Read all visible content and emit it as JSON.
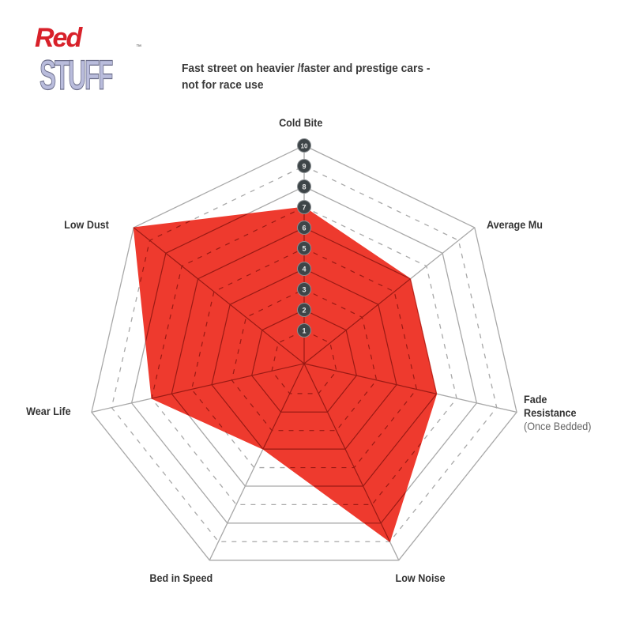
{
  "logo": {
    "line1": "Red",
    "line2": "STUFF",
    "tm": "™"
  },
  "description": {
    "line1": "Fast street on heavier /faster and prestige cars -",
    "line2": "not for race use"
  },
  "chart_data": {
    "type": "radar",
    "title": "",
    "scale": {
      "min": 1,
      "max": 10,
      "tick_labels": [
        "1",
        "2",
        "3",
        "4",
        "5",
        "6",
        "7",
        "8",
        "9",
        "10"
      ]
    },
    "axes": [
      "Cold Bite",
      "Average Mu",
      "Fade Resistance",
      "Low Noise",
      "Bed in Speed",
      "Wear Life",
      "Low Dust"
    ],
    "axis_sublabels": {
      "Fade Resistance": "(Once Bedded)"
    },
    "values": [
      7,
      6,
      6,
      9,
      4,
      7,
      10
    ],
    "fill_color": "#ee3a2e",
    "grid": true
  }
}
